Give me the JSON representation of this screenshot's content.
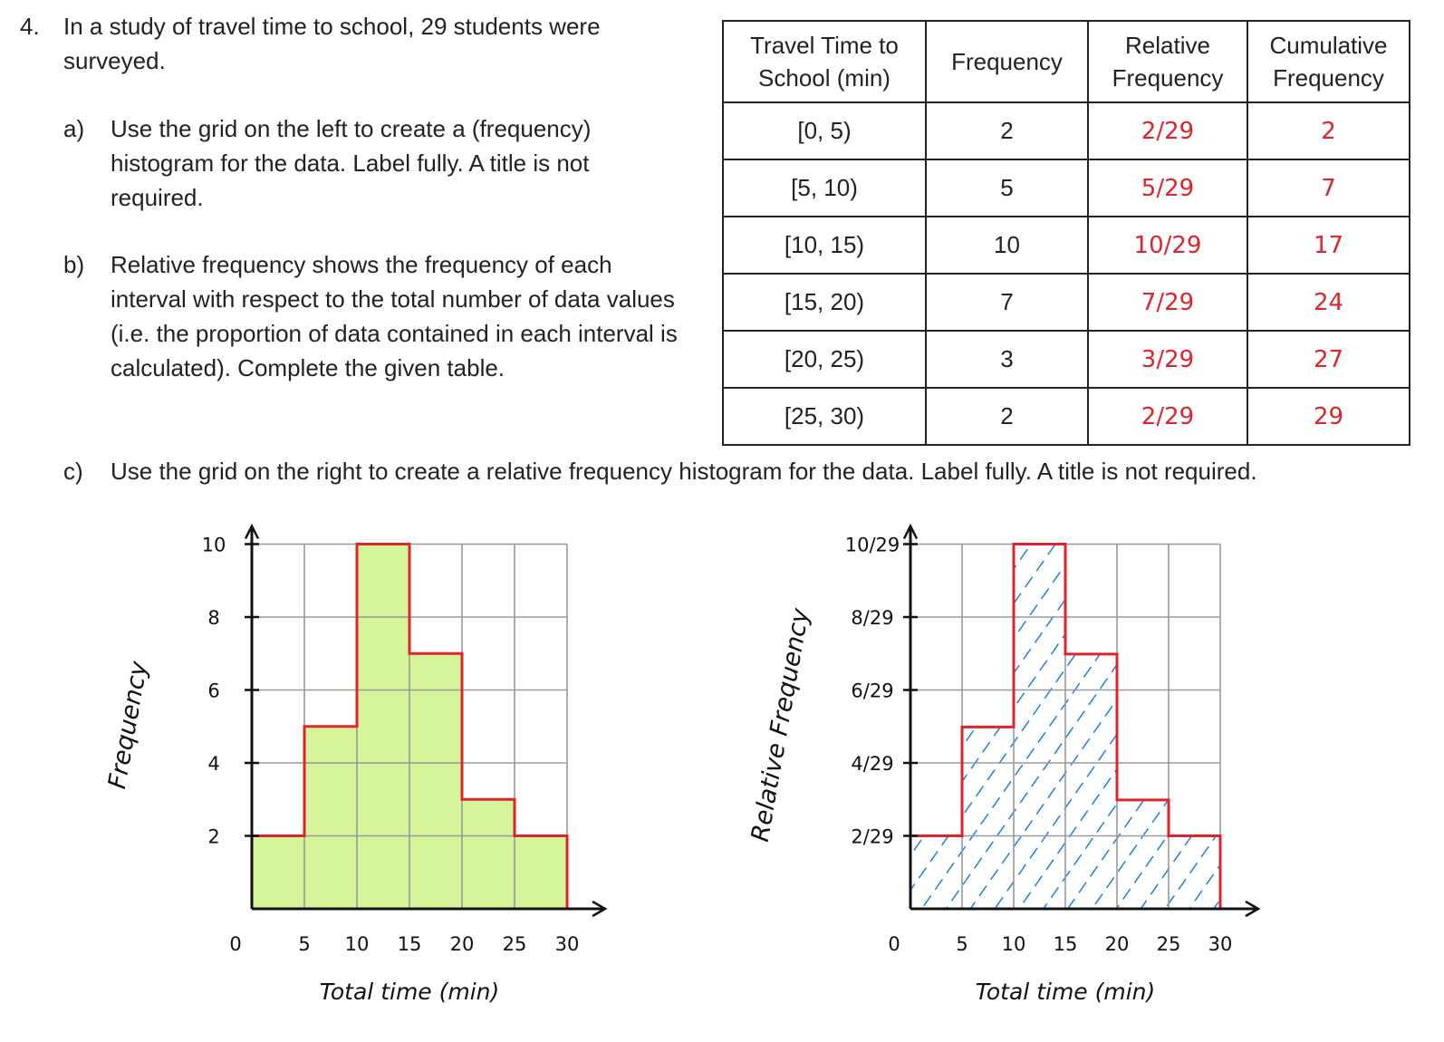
{
  "question": {
    "number": "4.",
    "intro": "In a study of travel time to school, 29 students were surveyed.",
    "parts": [
      {
        "letter": "a)",
        "text": "Use the grid on the left to create a (frequency) histogram for the data.  Label fully.  A title is not required."
      },
      {
        "letter": "b)",
        "text": "Relative frequency shows the frequency of each interval with respect to the total number of data values (i.e. the proportion of data contained in each interval is calculated).  Complete the given table."
      },
      {
        "letter": "c)",
        "text": "Use the grid on the right to create a relative frequency histogram for the data.  Label fully.  A title is not required."
      }
    ]
  },
  "table": {
    "headers": [
      "Travel Time to School (min)",
      "Frequency",
      "Relative Frequency",
      "Cumulative Frequency"
    ],
    "rows": [
      {
        "interval": "[0, 5)",
        "frequency": "2",
        "relative": "2/29",
        "cumulative": "2"
      },
      {
        "interval": "[5, 10)",
        "frequency": "5",
        "relative": "5/29",
        "cumulative": "7"
      },
      {
        "interval": "[10, 15)",
        "frequency": "10",
        "relative": "10/29",
        "cumulative": "17"
      },
      {
        "interval": "[15, 20)",
        "frequency": "7",
        "relative": "7/29",
        "cumulative": "24"
      },
      {
        "interval": "[20, 25)",
        "frequency": "3",
        "relative": "3/29",
        "cumulative": "27"
      },
      {
        "interval": "[25, 30)",
        "frequency": "2",
        "relative": "2/29",
        "cumulative": "29"
      }
    ]
  },
  "chart_data": [
    {
      "type": "bar",
      "categories": [
        "[0, 5)",
        "[5, 10)",
        "[10, 15)",
        "[15, 20)",
        "[20, 25)",
        "[25, 30)"
      ],
      "values": [
        2,
        5,
        10,
        7,
        3,
        2
      ],
      "xlabel": "Total time (min)",
      "ylabel": "Frequency",
      "x_ticks": [
        "0",
        "5",
        "10",
        "15",
        "20",
        "25",
        "30"
      ],
      "y_ticks": [
        "2",
        "4",
        "6",
        "8",
        "10"
      ],
      "ylim": [
        0,
        10
      ],
      "grid": true,
      "bar_color": "#d6f59a",
      "outline_color": "#e0242b"
    },
    {
      "type": "bar",
      "categories": [
        "[0, 5)",
        "[5, 10)",
        "[10, 15)",
        "[15, 20)",
        "[20, 25)",
        "[25, 30)"
      ],
      "values": [
        0.069,
        0.172,
        0.345,
        0.241,
        0.103,
        0.069
      ],
      "xlabel": "Total time (min)",
      "ylabel": "Relative Frequency",
      "x_ticks": [
        "0",
        "5",
        "10",
        "15",
        "20",
        "25",
        "30"
      ],
      "y_ticks": [
        "2/29",
        "4/29",
        "6/29",
        "8/29",
        "10/29"
      ],
      "ylim": [
        0,
        0.345
      ],
      "grid": true,
      "hatch_color": "#1f7fe0",
      "outline_color": "#e0242b"
    }
  ]
}
